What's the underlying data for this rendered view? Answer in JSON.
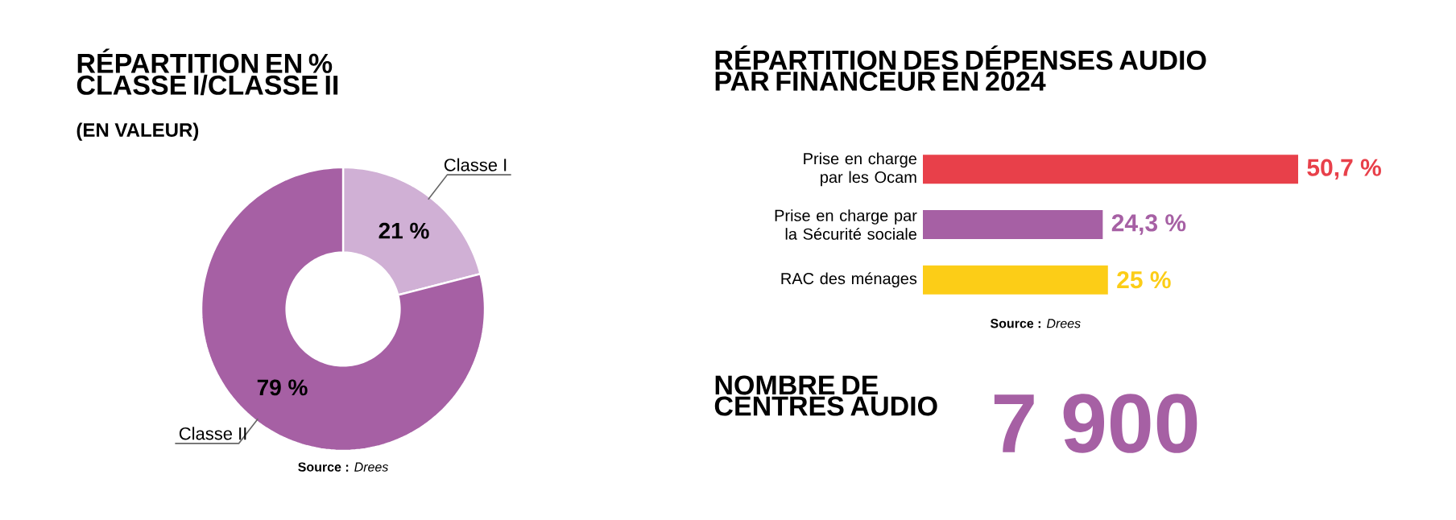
{
  "chart_data": [
    {
      "type": "donut",
      "title": "RÉPARTITION EN % CLASSE I/CLASSE II",
      "subtitle": "(EN VALEUR)",
      "categories": [
        "Classe I",
        "Classe II"
      ],
      "values": [
        21,
        79
      ],
      "colors": [
        "#d0b0d5",
        "#a660a4"
      ],
      "value_labels": [
        "21 %",
        "79 %"
      ],
      "annotations": [
        "**Source :** *Drees*"
      ]
    },
    {
      "type": "bar",
      "orientation": "horizontal",
      "title": "RÉPARTITION DES DÉPENSES AUDIO PAR FINANCEUR EN 2024",
      "categories": [
        "Prise en charge par les Ocam",
        "Prise en charge par la Sécurité sociale",
        "RAC des ménages"
      ],
      "values": [
        50.7,
        24.3,
        25
      ],
      "colors": [
        "#e8404a",
        "#a660a4",
        "#fccd17"
      ],
      "value_labels": [
        "50,7 %",
        "24,3 %",
        "25 %"
      ],
      "annotations": [
        "**Source :** *Drees*"
      ]
    },
    {
      "type": "other",
      "title": "NOMBRE DE CENTRES AUDIO",
      "annotations": [
        "7 900"
      ]
    }
  ]
}
